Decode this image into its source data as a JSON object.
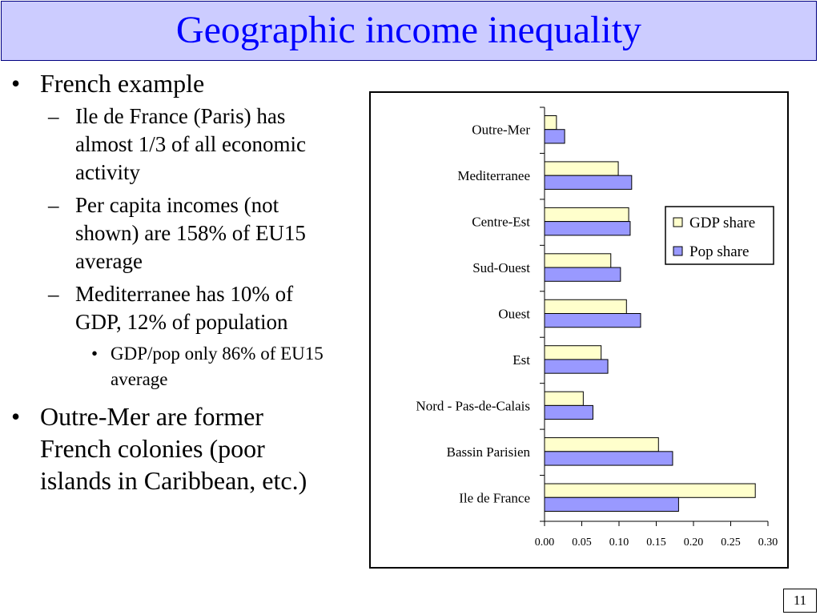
{
  "slide": {
    "title": "Geographic income inequality",
    "page_number": "11"
  },
  "bullets": {
    "b1_mark": "•",
    "b2_mark": "–",
    "b3_mark": "•",
    "french_example": "French example",
    "ile_de_france": "Ile de France (Paris) has almost 1/3 of all economic activity",
    "per_capita": "Per capita incomes (not shown) are 158% of EU15 average",
    "mediterranee": "Mediterranee has 10% of GDP, 12% of population",
    "gdp_pop": "GDP/pop only 86% of EU15 average",
    "outre_mer": "Outre-Mer are former French colonies (poor islands in Caribbean, etc.)"
  },
  "chart_data": {
    "type": "bar",
    "orientation": "horizontal",
    "categories": [
      "Outre-Mer",
      "Mediterranee",
      "Centre-Est",
      "Sud-Ouest",
      "Ouest",
      "Est",
      "Nord - Pas-de-Calais",
      "Bassin Parisien",
      "Ile de France"
    ],
    "series": [
      {
        "name": "GDP share",
        "color": "#ffffcc",
        "values": [
          0.016,
          0.099,
          0.113,
          0.089,
          0.11,
          0.076,
          0.052,
          0.153,
          0.283
        ]
      },
      {
        "name": "Pop share",
        "color": "#9999ff",
        "values": [
          0.027,
          0.117,
          0.115,
          0.102,
          0.129,
          0.085,
          0.065,
          0.172,
          0.18
        ]
      }
    ],
    "xlim": [
      0,
      0.3
    ],
    "xticks": [
      "0.00",
      "0.05",
      "0.10",
      "0.15",
      "0.20",
      "0.25",
      "0.30"
    ],
    "xtick_values": [
      0,
      0.05,
      0.1,
      0.15,
      0.2,
      0.25,
      0.3
    ],
    "legend_position": "right",
    "grid": false
  }
}
